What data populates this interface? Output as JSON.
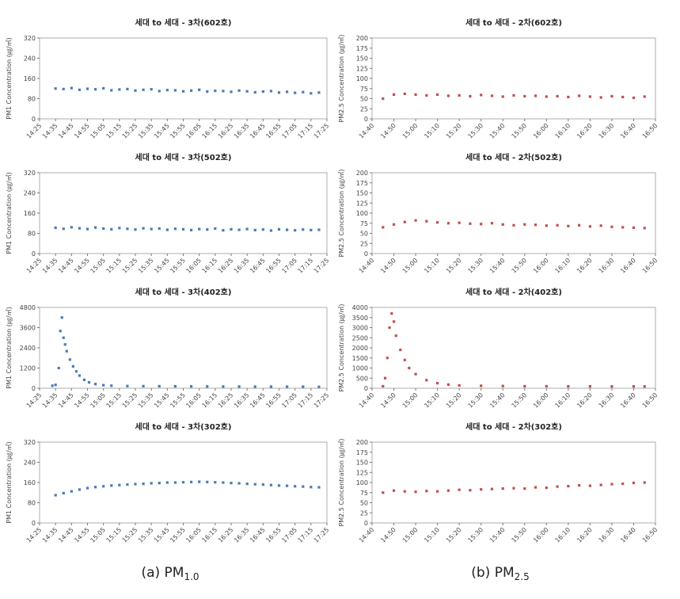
{
  "chart_data": [
    {
      "type": "scatter",
      "title": "세대 to 세대 - 3차(602호)",
      "y_label": "PM1 Concentration (㎍/㎥)",
      "color": "#4a7ab8",
      "x": [
        "14:35",
        "14:40",
        "14:45",
        "14:50",
        "14:55",
        "15:00",
        "15:05",
        "15:10",
        "15:15",
        "15:20",
        "15:25",
        "15:30",
        "15:35",
        "15:40",
        "15:45",
        "15:50",
        "15:55",
        "16:00",
        "16:05",
        "16:10",
        "16:15",
        "16:20",
        "16:25",
        "16:30",
        "16:35",
        "16:40",
        "16:45",
        "16:50",
        "16:55",
        "17:00",
        "17:05",
        "17:10",
        "17:15",
        "17:20"
      ],
      "values": [
        120,
        118,
        122,
        115,
        119,
        117,
        121,
        113,
        116,
        118,
        112,
        115,
        117,
        110,
        114,
        113,
        109,
        112,
        115,
        108,
        111,
        110,
        107,
        112,
        109,
        105,
        108,
        110,
        104,
        107,
        103,
        106,
        101,
        104
      ],
      "xlim": [
        "14:25",
        "17:25"
      ],
      "xticks": [
        "14:25",
        "14:35",
        "14:45",
        "14:55",
        "15:05",
        "15:15",
        "15:25",
        "15:35",
        "15:45",
        "15:55",
        "16:05",
        "16:15",
        "16:25",
        "16:35",
        "16:45",
        "16:55",
        "17:05",
        "17:15",
        "17:25"
      ],
      "ylim": [
        0,
        320
      ],
      "yticks": [
        0,
        80,
        160,
        240,
        320
      ]
    },
    {
      "type": "scatter",
      "title": "세대 to 세대 - 2차(602호)",
      "y_label": "PM2.5 Concentration (㎍/㎥)",
      "color": "#c0504d",
      "x": [
        "14:45",
        "14:50",
        "14:55",
        "15:00",
        "15:05",
        "15:10",
        "15:15",
        "15:20",
        "15:25",
        "15:30",
        "15:35",
        "15:40",
        "15:45",
        "15:50",
        "15:55",
        "16:00",
        "16:05",
        "16:10",
        "16:15",
        "16:20",
        "16:25",
        "16:30",
        "16:35",
        "16:40",
        "16:45"
      ],
      "values": [
        50,
        60,
        62,
        60,
        58,
        60,
        57,
        58,
        56,
        59,
        57,
        55,
        58,
        56,
        57,
        55,
        56,
        54,
        57,
        55,
        53,
        56,
        54,
        52,
        55
      ],
      "xlim": [
        "14:40",
        "16:50"
      ],
      "xticks": [
        "14:40",
        "14:50",
        "15:00",
        "15:10",
        "15:20",
        "15:30",
        "15:40",
        "15:50",
        "16:00",
        "16:10",
        "16:20",
        "16:30",
        "16:40",
        "16:50"
      ],
      "ylim": [
        0,
        200
      ],
      "yticks": [
        0,
        25,
        50,
        75,
        100,
        125,
        150,
        175,
        200
      ]
    },
    {
      "type": "scatter",
      "title": "세대 to 세대 - 3차(502호)",
      "y_label": "PM1 Concentration (㎍/㎥)",
      "color": "#4a7ab8",
      "x": [
        "14:35",
        "14:40",
        "14:45",
        "14:50",
        "14:55",
        "15:00",
        "15:05",
        "15:10",
        "15:15",
        "15:20",
        "15:25",
        "15:30",
        "15:35",
        "15:40",
        "15:45",
        "15:50",
        "15:55",
        "16:00",
        "16:05",
        "16:10",
        "16:15",
        "16:20",
        "16:25",
        "16:30",
        "16:35",
        "16:40",
        "16:45",
        "16:50",
        "16:55",
        "17:00",
        "17:05",
        "17:10",
        "17:15",
        "17:20"
      ],
      "values": [
        102,
        98,
        104,
        100,
        97,
        103,
        99,
        96,
        101,
        98,
        95,
        100,
        97,
        99,
        94,
        98,
        96,
        93,
        97,
        95,
        99,
        92,
        96,
        94,
        97,
        93,
        95,
        91,
        96,
        94,
        92,
        95,
        93,
        94
      ],
      "xlim": [
        "14:25",
        "17:25"
      ],
      "xticks": [
        "14:25",
        "14:35",
        "14:45",
        "14:55",
        "15:05",
        "15:15",
        "15:25",
        "15:35",
        "15:45",
        "15:55",
        "16:05",
        "16:15",
        "16:25",
        "16:35",
        "16:45",
        "16:55",
        "17:05",
        "17:15",
        "17:25"
      ],
      "ylim": [
        0,
        320
      ],
      "yticks": [
        0,
        80,
        160,
        240,
        320
      ]
    },
    {
      "type": "scatter",
      "title": "세대 to 세대 - 2차(502호)",
      "y_label": "PM2.5 Concentration (㎍/㎥)",
      "color": "#c0504d",
      "x": [
        "14:45",
        "14:50",
        "14:55",
        "15:00",
        "15:05",
        "15:10",
        "15:15",
        "15:20",
        "15:25",
        "15:30",
        "15:35",
        "15:40",
        "15:45",
        "15:50",
        "15:55",
        "16:00",
        "16:05",
        "16:10",
        "16:15",
        "16:20",
        "16:25",
        "16:30",
        "16:35",
        "16:40",
        "16:45"
      ],
      "values": [
        65,
        72,
        78,
        82,
        80,
        77,
        75,
        76,
        74,
        73,
        75,
        72,
        70,
        72,
        71,
        69,
        70,
        68,
        70,
        67,
        69,
        66,
        65,
        64,
        63
      ],
      "xlim": [
        "14:40",
        "16:50"
      ],
      "xticks": [
        "14:40",
        "14:50",
        "15:00",
        "15:10",
        "15:20",
        "15:30",
        "15:40",
        "15:50",
        "16:00",
        "16:10",
        "16:20",
        "16:30",
        "16:40",
        "16:50"
      ],
      "ylim": [
        0,
        200
      ],
      "yticks": [
        0,
        25,
        50,
        75,
        100,
        125,
        150,
        175,
        200
      ]
    },
    {
      "type": "scatter",
      "title": "세대 to 세대 - 3차(402호)",
      "y_label": "PM1 Concentration (㎍/㎥)",
      "color": "#4a7ab8",
      "x": [
        "14:33",
        "14:35",
        "14:37",
        "14:38",
        "14:39",
        "14:40",
        "14:41",
        "14:42",
        "14:44",
        "14:46",
        "14:48",
        "14:50",
        "14:53",
        "14:56",
        "15:00",
        "15:05",
        "15:10",
        "15:20",
        "15:30",
        "15:40",
        "15:50",
        "16:00",
        "16:10",
        "16:20",
        "16:30",
        "16:40",
        "16:50",
        "17:00",
        "17:10",
        "17:20"
      ],
      "values": [
        150,
        200,
        1200,
        3400,
        4200,
        3000,
        2600,
        2200,
        1700,
        1300,
        1000,
        750,
        500,
        350,
        250,
        180,
        150,
        130,
        125,
        120,
        115,
        110,
        105,
        100,
        100,
        95,
        95,
        90,
        90,
        85
      ],
      "xlim": [
        "14:25",
        "17:25"
      ],
      "xticks": [
        "14:25",
        "14:35",
        "14:45",
        "14:55",
        "15:05",
        "15:15",
        "15:25",
        "15:35",
        "15:45",
        "15:55",
        "16:05",
        "16:15",
        "16:25",
        "16:35",
        "16:45",
        "16:55",
        "17:05",
        "17:15",
        "17:25"
      ],
      "ylim": [
        0,
        4800
      ],
      "yticks": [
        0,
        1200,
        2400,
        3600,
        4800
      ]
    },
    {
      "type": "scatter",
      "title": "세대 to 세대 - 2차(402호)",
      "y_label": "PM2.5 Concentration (㎍/㎥)",
      "color": "#c0504d",
      "x": [
        "14:45",
        "14:46",
        "14:47",
        "14:48",
        "14:49",
        "14:50",
        "14:51",
        "14:53",
        "14:55",
        "14:57",
        "15:00",
        "15:05",
        "15:10",
        "15:15",
        "15:20",
        "15:30",
        "15:40",
        "15:50",
        "16:00",
        "16:10",
        "16:20",
        "16:30",
        "16:40",
        "16:45"
      ],
      "values": [
        100,
        500,
        1500,
        3000,
        3700,
        3300,
        2600,
        1900,
        1400,
        1000,
        700,
        400,
        250,
        180,
        140,
        120,
        110,
        100,
        100,
        95,
        95,
        90,
        90,
        90
      ],
      "xlim": [
        "14:40",
        "16:50"
      ],
      "xticks": [
        "14:40",
        "14:50",
        "15:00",
        "15:10",
        "15:20",
        "15:30",
        "15:40",
        "15:50",
        "16:00",
        "16:10",
        "16:20",
        "16:30",
        "16:40",
        "16:50"
      ],
      "ylim": [
        0,
        4000
      ],
      "yticks": [
        0,
        500,
        1000,
        1500,
        2000,
        2500,
        3000,
        3500,
        4000
      ]
    },
    {
      "type": "scatter",
      "title": "세대 to 세대 - 3차(302호)",
      "y_label": "PM1 Concentration (㎍/㎥)",
      "color": "#4a7ab8",
      "x": [
        "14:35",
        "14:40",
        "14:45",
        "14:50",
        "14:55",
        "15:00",
        "15:05",
        "15:10",
        "15:15",
        "15:20",
        "15:25",
        "15:30",
        "15:35",
        "15:40",
        "15:45",
        "15:50",
        "15:55",
        "16:00",
        "16:05",
        "16:10",
        "16:15",
        "16:20",
        "16:25",
        "16:30",
        "16:35",
        "16:40",
        "16:45",
        "16:50",
        "16:55",
        "17:00",
        "17:05",
        "17:10",
        "17:15",
        "17:20"
      ],
      "values": [
        110,
        118,
        125,
        132,
        138,
        142,
        145,
        148,
        150,
        152,
        154,
        155,
        157,
        158,
        160,
        160,
        161,
        162,
        163,
        162,
        161,
        160,
        158,
        157,
        155,
        153,
        152,
        150,
        148,
        147,
        145,
        144,
        142,
        141
      ],
      "xlim": [
        "14:25",
        "17:25"
      ],
      "xticks": [
        "14:25",
        "14:35",
        "14:45",
        "14:55",
        "15:05",
        "15:15",
        "15:25",
        "15:35",
        "15:45",
        "15:55",
        "16:05",
        "16:15",
        "16:25",
        "16:35",
        "16:45",
        "16:55",
        "17:05",
        "17:15",
        "17:25"
      ],
      "ylim": [
        0,
        320
      ],
      "yticks": [
        0,
        80,
        160,
        240,
        320
      ]
    },
    {
      "type": "scatter",
      "title": "세대 to 세대 - 2차(302호)",
      "y_label": "PM2.5 Concentration (㎍/㎥)",
      "color": "#c0504d",
      "x": [
        "14:45",
        "14:50",
        "14:55",
        "15:00",
        "15:05",
        "15:10",
        "15:15",
        "15:20",
        "15:25",
        "15:30",
        "15:35",
        "15:40",
        "15:45",
        "15:50",
        "15:55",
        "16:00",
        "16:05",
        "16:10",
        "16:15",
        "16:20",
        "16:25",
        "16:30",
        "16:35",
        "16:40",
        "16:45"
      ],
      "values": [
        75,
        80,
        78,
        77,
        79,
        78,
        80,
        82,
        81,
        83,
        84,
        85,
        86,
        85,
        88,
        87,
        90,
        91,
        93,
        92,
        94,
        96,
        97,
        99,
        100
      ],
      "xlim": [
        "14:40",
        "16:50"
      ],
      "xticks": [
        "14:40",
        "14:50",
        "15:00",
        "15:10",
        "15:20",
        "15:30",
        "15:40",
        "15:50",
        "16:00",
        "16:10",
        "16:20",
        "16:30",
        "16:40",
        "16:50"
      ],
      "ylim": [
        0,
        200
      ],
      "yticks": [
        0,
        25,
        50,
        75,
        100,
        125,
        150,
        175,
        200
      ]
    }
  ],
  "captions": [
    {
      "text": "(a)  PM",
      "sub": "1.0"
    },
    {
      "text": "(b)  PM",
      "sub": "2.5"
    }
  ]
}
